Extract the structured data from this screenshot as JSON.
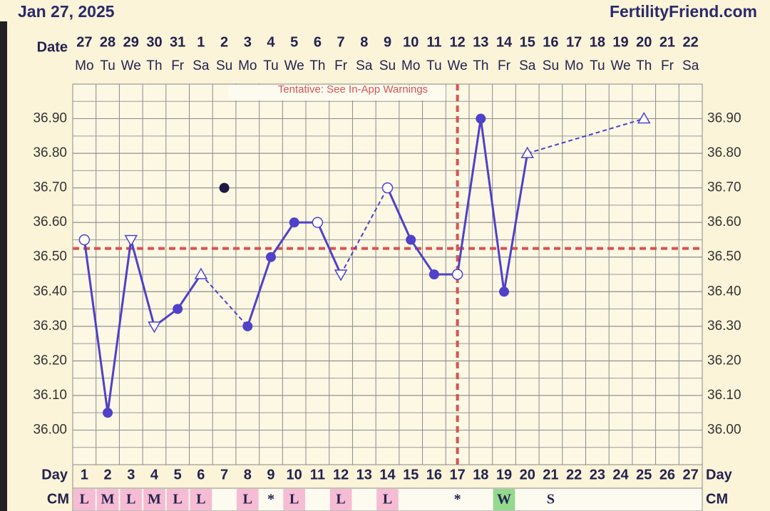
{
  "chart_data": {
    "type": "line",
    "title": "Jan 27, 2025",
    "source": "FertilityFriend.com",
    "annotation": "Tentative: See In-App Warnings",
    "date_label": "Date",
    "day_label": "Day",
    "cm_label": "CM",
    "dates": [
      27,
      28,
      29,
      30,
      31,
      1,
      2,
      3,
      4,
      5,
      6,
      7,
      8,
      9,
      10,
      11,
      12,
      13,
      14,
      15,
      16,
      17,
      18,
      19,
      20,
      21,
      22
    ],
    "weekdays": [
      "Mo",
      "Tu",
      "We",
      "Th",
      "Fr",
      "Sa",
      "Su",
      "Mo",
      "Tu",
      "We",
      "Th",
      "Fr",
      "Sa",
      "Su",
      "Mo",
      "Tu",
      "We",
      "Th",
      "Fr",
      "Sa",
      "Su",
      "Mo",
      "Tu",
      "We",
      "Th",
      "Fr",
      "Sa"
    ],
    "x": [
      1,
      2,
      3,
      4,
      5,
      6,
      7,
      8,
      9,
      10,
      11,
      12,
      13,
      14,
      15,
      16,
      17,
      18,
      19,
      20,
      21,
      22,
      23,
      24,
      25,
      26,
      27
    ],
    "xlim": [
      0.5,
      27.5
    ],
    "values": [
      36.55,
      36.05,
      36.55,
      36.3,
      36.35,
      36.45,
      36.7,
      36.3,
      36.5,
      36.6,
      36.6,
      36.45,
      null,
      36.7,
      36.55,
      36.45,
      36.45,
      36.9,
      36.4,
      36.8,
      null,
      null,
      null,
      null,
      36.9,
      null,
      null
    ],
    "markers": [
      "open-circle",
      "filled",
      "open-down",
      "open-down",
      "filled",
      "open-up",
      "discarded",
      "filled",
      "filled",
      "filled",
      "open-circle",
      "open-down",
      null,
      "open-circle",
      "filled",
      "filled",
      "open-circle",
      "filled",
      "filled",
      "open-up",
      null,
      null,
      null,
      null,
      "open-up",
      null,
      null
    ],
    "links": [
      "solid",
      "solid",
      "solid",
      "solid",
      "solid",
      "dashed",
      null,
      "solid",
      "solid",
      "solid",
      "solid",
      "dashed",
      null,
      "solid",
      "solid",
      "solid",
      "solid",
      "solid",
      "solid",
      "dashed",
      null,
      null,
      null,
      null,
      null,
      null,
      null
    ],
    "cm": [
      "L",
      "M",
      "L",
      "M",
      "L",
      "L",
      null,
      "L",
      "*",
      "L",
      null,
      "L",
      null,
      "L",
      null,
      null,
      "*",
      null,
      "W",
      null,
      "S",
      null,
      null,
      null,
      null,
      null,
      null
    ],
    "cm_colors": {
      "L": "#f5bcd3",
      "M": "#f5bcd3",
      "W": "#93d98e"
    },
    "color": "#4f41c9",
    "discarded_color": "#1d1a45",
    "guide_color": "#d9534f",
    "coverline": 36.525,
    "ovulation_day": 17,
    "ylim": [
      35.9,
      37.0
    ],
    "yticks": [
      {
        "value": 36.0,
        "label": "36.00"
      },
      {
        "value": 36.1,
        "label": "36.10"
      },
      {
        "value": 36.2,
        "label": "36.20"
      },
      {
        "value": 36.3,
        "label": "36.30"
      },
      {
        "value": 36.4,
        "label": "36.40"
      },
      {
        "value": 36.5,
        "label": "36.50"
      },
      {
        "value": 36.6,
        "label": "36.60"
      },
      {
        "value": 36.7,
        "label": "36.70"
      },
      {
        "value": 36.8,
        "label": "36.80"
      },
      {
        "value": 36.9,
        "label": "36.90"
      }
    ],
    "grid": true
  }
}
